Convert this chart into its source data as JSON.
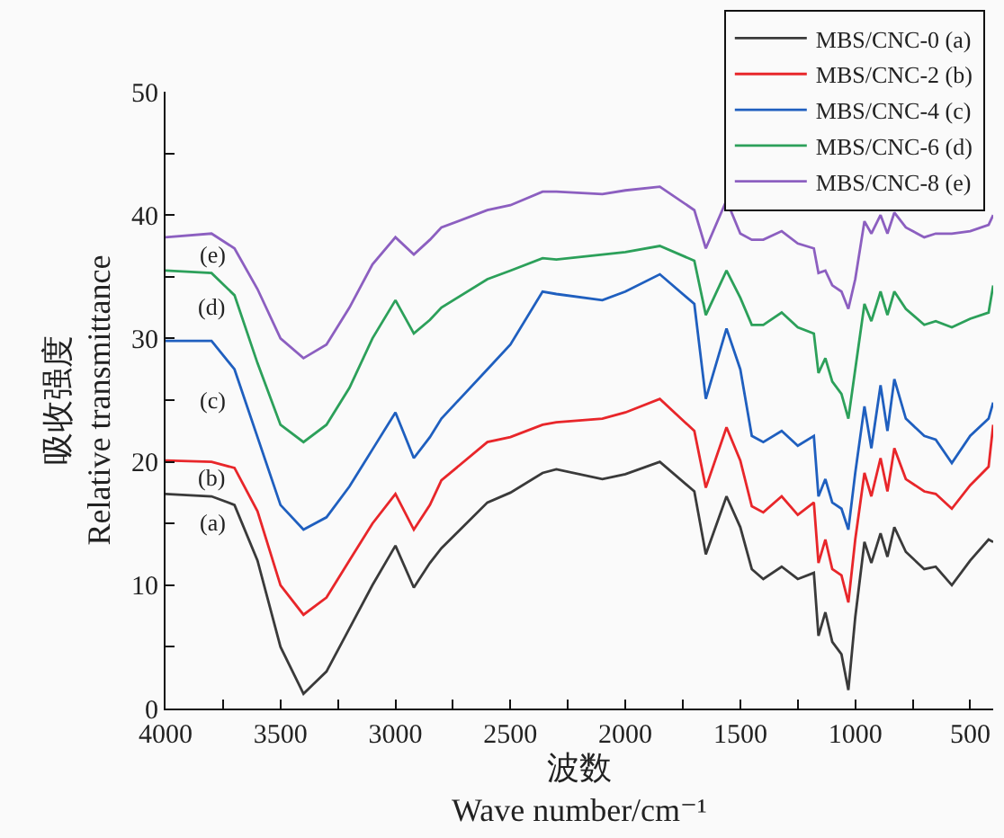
{
  "chart_data": {
    "type": "line",
    "xlabel": "波数\nWave number/cm⁻¹",
    "ylabel": "吸收强度\nRelative transmittance",
    "x": [
      4000,
      3800,
      3700,
      3600,
      3500,
      3400,
      3300,
      3200,
      3100,
      3000,
      2920,
      2850,
      2800,
      2600,
      2500,
      2360,
      2300,
      2100,
      2000,
      1850,
      1700,
      1650,
      1560,
      1500,
      1450,
      1400,
      1320,
      1250,
      1180,
      1160,
      1130,
      1100,
      1060,
      1030,
      1000,
      960,
      930,
      890,
      860,
      830,
      780,
      700,
      650,
      580,
      500,
      420,
      400
    ],
    "series": [
      {
        "name": "MBS/CNC-0 (a)",
        "color": "#3a3a3a",
        "values": [
          17.4,
          17.2,
          16.5,
          12,
          5,
          1.2,
          3,
          6.5,
          10,
          13.2,
          9.8,
          11.8,
          13,
          16.7,
          17.5,
          19.1,
          19.4,
          18.6,
          19,
          20,
          17.6,
          12.5,
          17.2,
          14.7,
          11.3,
          10.5,
          11.5,
          10.5,
          11,
          5.9,
          7.8,
          5.4,
          4.4,
          1.5,
          7.4,
          13.5,
          11.8,
          14.2,
          12.3,
          14.7,
          12.7,
          11.3,
          11.5,
          10,
          12,
          13.7,
          13.5
        ]
      },
      {
        "name": "MBS/CNC-2 (b)",
        "color": "#e8262a",
        "values": [
          20.1,
          20,
          19.5,
          16,
          10,
          7.6,
          9,
          12,
          15,
          17.4,
          14.5,
          16.5,
          18.5,
          21.6,
          22,
          23,
          23.2,
          23.5,
          24,
          25.1,
          22.5,
          17.9,
          22.8,
          20.1,
          16.4,
          15.9,
          17.2,
          15.7,
          16.7,
          11.8,
          13.7,
          11.3,
          10.8,
          8.6,
          13.7,
          19.1,
          17.2,
          20.3,
          17.6,
          21.1,
          18.6,
          17.6,
          17.4,
          16.2,
          18.1,
          19.6,
          23
        ]
      },
      {
        "name": "MBS/CNC-4 (c)",
        "color": "#1f5fbf",
        "values": [
          29.8,
          29.8,
          27.5,
          22,
          16.5,
          14.5,
          15.5,
          18,
          21,
          24,
          20.3,
          22,
          23.5,
          27.5,
          29.5,
          33.8,
          33.6,
          33.1,
          33.8,
          35.2,
          32.8,
          25.1,
          30.8,
          27.5,
          22.1,
          21.6,
          22.5,
          21.3,
          22.1,
          17.2,
          18.6,
          16.7,
          16.2,
          14.5,
          19.1,
          24.5,
          21.1,
          26.2,
          22.5,
          26.7,
          23.5,
          22.1,
          21.8,
          19.9,
          22.1,
          23.5,
          24.8
        ]
      },
      {
        "name": "MBS/CNC-6 (d)",
        "color": "#2ca05a",
        "values": [
          35.5,
          35.3,
          33.5,
          28,
          23,
          21.6,
          23,
          26,
          30,
          33.1,
          30.4,
          31.5,
          32.5,
          34.8,
          35.5,
          36.5,
          36.4,
          36.8,
          37,
          37.5,
          36.3,
          31.9,
          35.5,
          33.3,
          31.1,
          31.1,
          32.1,
          30.9,
          30.4,
          27.2,
          28.4,
          26.5,
          25.5,
          23.5,
          27.5,
          32.8,
          31.4,
          33.8,
          31.9,
          33.8,
          32.4,
          31.1,
          31.4,
          30.9,
          31.6,
          32.1,
          34.3
        ]
      },
      {
        "name": "MBS/CNC-8 (e)",
        "color": "#8c5fc0",
        "values": [
          38.2,
          38.5,
          37.3,
          34,
          30,
          28.4,
          29.5,
          32.5,
          36,
          38.2,
          36.8,
          38,
          39,
          40.4,
          40.8,
          41.9,
          41.9,
          41.7,
          42,
          42.3,
          40.4,
          37.3,
          41.2,
          38.5,
          38,
          38,
          38.7,
          37.7,
          37.3,
          35.3,
          35.5,
          34.3,
          33.8,
          32.4,
          34.8,
          39.5,
          38.5,
          40,
          38.5,
          40.2,
          39,
          38.2,
          38.5,
          38.5,
          38.7,
          39.2,
          40
        ]
      }
    ],
    "annotations": [
      "(a)",
      "(b)",
      "(c)",
      "(d)",
      "(e)"
    ],
    "xlim": [
      4000,
      400
    ],
    "xticks": [
      4000,
      {
        "value": 3750,
        "label": null
      },
      3500,
      {
        "value": 3250,
        "label": null
      },
      3000,
      {
        "value": 2750,
        "label": null
      },
      2500,
      {
        "value": 2250,
        "label": null
      },
      2000,
      {
        "value": 1750,
        "label": null
      },
      1500,
      {
        "value": 1250,
        "label": null
      },
      1000,
      {
        "value": 750,
        "label": null
      },
      500
    ],
    "ylim": [
      0,
      50
    ],
    "yticks": [
      0,
      {
        "value": 5,
        "label": null
      },
      10,
      {
        "value": 15,
        "label": null
      },
      20,
      {
        "value": 25,
        "label": null
      },
      30,
      {
        "value": 35,
        "label": null
      },
      40,
      {
        "value": 45,
        "label": null
      },
      50
    ],
    "grid": false,
    "legend": "top right",
    "line_style": "solid",
    "marker": "none"
  }
}
